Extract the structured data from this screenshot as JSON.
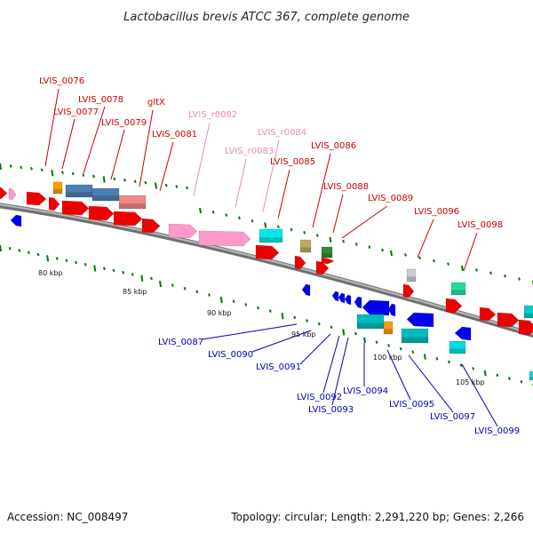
{
  "title": "Lactobacillus brevis ATCC 367, complete genome",
  "footer": {
    "accession": "Accession: NC_008497",
    "summary": "Topology: circular; Length: 2,291,220 bp; Genes: 2,266"
  },
  "colors": {
    "forward_label": "#cc0000",
    "rna_label": "#ee88bb",
    "reverse_label": "#0000bb",
    "backbone": "#888888",
    "tick": "#007700"
  },
  "scale_ticks": [
    "80 kbp",
    "85 kbp",
    "90 kbp",
    "95 kbp",
    "100 kbp",
    "105 kbp"
  ],
  "forward_labels": [
    {
      "text": "LVIS_0076",
      "kind": "gene"
    },
    {
      "text": "LVIS_0077",
      "kind": "gene"
    },
    {
      "text": "LVIS_0078",
      "kind": "gene"
    },
    {
      "text": "LVIS_0079",
      "kind": "gene"
    },
    {
      "text": "gltX",
      "kind": "gene"
    },
    {
      "text": "LVIS_0081",
      "kind": "gene"
    },
    {
      "text": "LVIS_r0082",
      "kind": "rna"
    },
    {
      "text": "LVIS_r0083",
      "kind": "rna"
    },
    {
      "text": "LVIS_r0084",
      "kind": "rna"
    },
    {
      "text": "LVIS_0085",
      "kind": "gene"
    },
    {
      "text": "LVIS_0086",
      "kind": "gene"
    },
    {
      "text": "LVIS_0088",
      "kind": "gene"
    },
    {
      "text": "LVIS_0089",
      "kind": "gene"
    },
    {
      "text": "LVIS_0096",
      "kind": "gene"
    },
    {
      "text": "LVIS_0098",
      "kind": "gene"
    }
  ],
  "reverse_labels": [
    {
      "text": "LVIS_0087",
      "kind": "gene"
    },
    {
      "text": "LVIS_0090",
      "kind": "gene"
    },
    {
      "text": "LVIS_0091",
      "kind": "gene"
    },
    {
      "text": "LVIS_0092",
      "kind": "gene"
    },
    {
      "text": "LVIS_0093",
      "kind": "gene"
    },
    {
      "text": "LVIS_0094",
      "kind": "gene"
    },
    {
      "text": "LVIS_0095",
      "kind": "gene"
    },
    {
      "text": "LVIS_0097",
      "kind": "gene"
    },
    {
      "text": "LVIS_0099",
      "kind": "gene"
    }
  ]
}
